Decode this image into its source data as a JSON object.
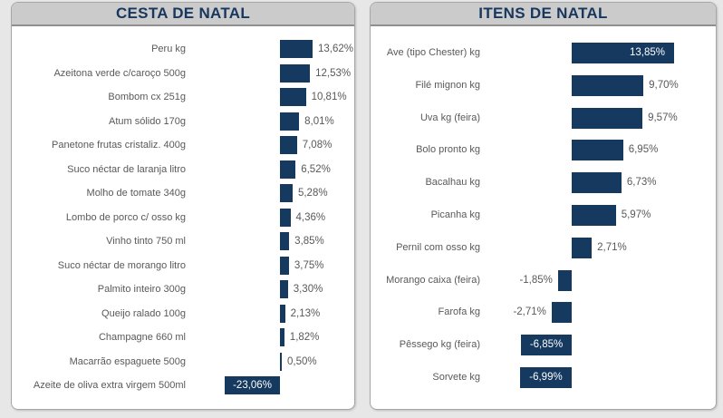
{
  "colors": {
    "bar": "#15395f",
    "title_text": "#17375e",
    "header_bg": "#cbcbcb",
    "header_border": "#8f8f8f",
    "panel_bg": "#ffffff",
    "panel_border": "#a6a6a6",
    "page_bg": "#e7e7e7",
    "label_text": "#595959",
    "inside_label_text": "#ffffff"
  },
  "panels": [
    {
      "title": "CESTA DE NATAL"
    },
    {
      "title": "ITENS DE NATAL"
    }
  ],
  "chart_data": [
    {
      "type": "bar",
      "orientation": "horizontal",
      "title": "CESTA DE NATAL",
      "unit": "%",
      "grid": false,
      "legend": false,
      "categories": [
        "Peru kg",
        "Azeitona verde c/caroço 500g",
        "Bombom cx 251g",
        "Atum sólido 170g",
        "Panetone frutas cristaliz. 400g",
        "Suco néctar de laranja litro",
        "Molho de tomate 340g",
        "Lombo de porco c/ osso kg",
        "Vinho tinto 750 ml",
        "Suco néctar de morango litro",
        "Palmito inteiro 300g",
        "Queijo ralado 100g",
        "Champagne 660 ml",
        "Macarrão espaguete 500g",
        "Azeite de oliva extra virgem 500ml"
      ],
      "values": [
        13.62,
        12.53,
        10.81,
        8.01,
        7.08,
        6.52,
        5.28,
        4.36,
        3.85,
        3.75,
        3.3,
        2.13,
        1.82,
        0.5,
        -23.06
      ],
      "value_labels": [
        "13,62%",
        "12,53%",
        "10,81%",
        "8,01%",
        "7,08%",
        "6,52%",
        "5,28%",
        "4,36%",
        "3,85%",
        "3,75%",
        "3,30%",
        "2,13%",
        "1,82%",
        "0,50%",
        "-23,06%"
      ],
      "label_positions": [
        "outside",
        "outside",
        "outside",
        "outside",
        "outside",
        "outside",
        "outside",
        "outside",
        "outside",
        "outside",
        "outside",
        "outside",
        "outside",
        "outside",
        "inside"
      ]
    },
    {
      "type": "bar",
      "orientation": "horizontal",
      "title": "ITENS DE NATAL",
      "unit": "%",
      "grid": false,
      "legend": false,
      "categories": [
        "Ave (tipo Chester) kg",
        "Filé mignon kg",
        "Uva kg (feira)",
        "Bolo pronto kg",
        "Bacalhau kg",
        "Picanha kg",
        "Pernil com osso kg",
        "Morango caixa (feira)",
        "Farofa kg",
        "Pêssego kg (feira)",
        "Sorvete kg"
      ],
      "values": [
        13.85,
        9.7,
        9.57,
        6.95,
        6.73,
        5.97,
        2.71,
        -1.85,
        -2.71,
        -6.85,
        -6.99
      ],
      "value_labels": [
        "13,85%",
        "9,70%",
        "9,57%",
        "6,95%",
        "6,73%",
        "5,97%",
        "2,71%",
        "-1,85%",
        "-2,71%",
        "-6,85%",
        "-6,99%"
      ],
      "label_positions": [
        "inside",
        "outside",
        "outside",
        "outside",
        "outside",
        "outside",
        "outside",
        "outside",
        "outside",
        "inside",
        "inside"
      ]
    }
  ]
}
